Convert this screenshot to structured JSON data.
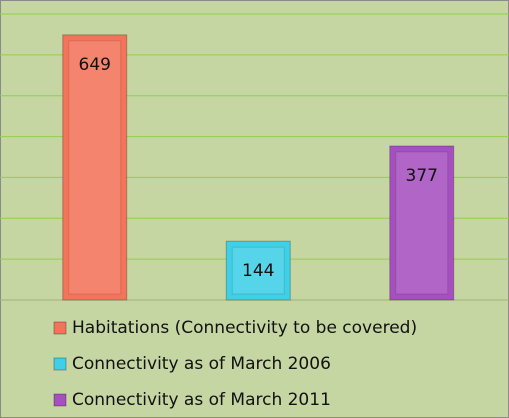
{
  "chart_data": {
    "type": "bar",
    "series": [
      {
        "name": "Habitations (Connectivity to be covered)",
        "color": "#f4735b",
        "values": [
          649
        ]
      },
      {
        "name": "Connectivity as of March 2006",
        "color": "#3fd0e8",
        "values": [
          144
        ]
      },
      {
        "name": "Connectivity as of March 2011",
        "color": "#a650c0",
        "values": [
          377
        ]
      }
    ],
    "ylim": [
      0,
      700
    ],
    "yticks": [
      0,
      100,
      200,
      300,
      400,
      500,
      600,
      700
    ],
    "grid": true,
    "legend": "bottom"
  }
}
